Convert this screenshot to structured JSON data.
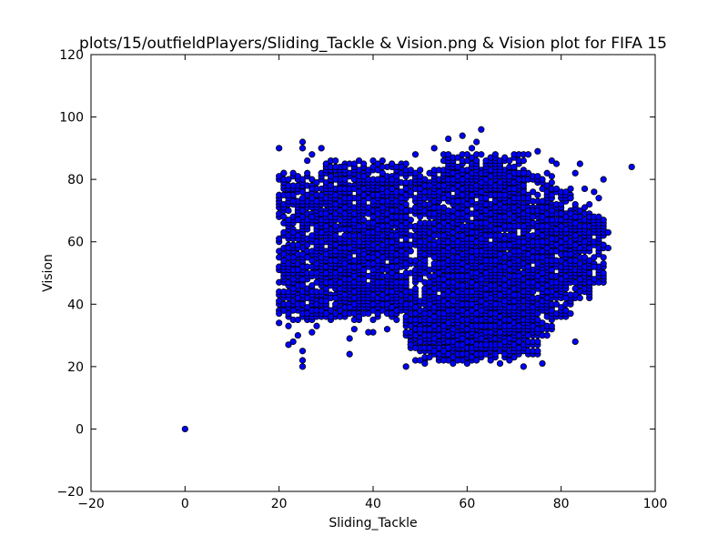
{
  "chart_data": {
    "type": "scatter",
    "title": "plots/15/outfieldPlayers/Sliding_Tackle & Vision.png & Vision plot for FIFA 15",
    "xlabel": "Sliding_Tackle",
    "ylabel": "Vision",
    "xlim": [
      -20,
      100
    ],
    "ylim": [
      -20,
      120
    ],
    "xticks": [
      -20,
      0,
      20,
      40,
      60,
      80,
      100
    ],
    "yticks": [
      -20,
      0,
      20,
      40,
      60,
      80,
      100,
      120
    ],
    "grid": false,
    "legend": "none",
    "marker_color": "#0000ff",
    "marker_edge_color": "#000000",
    "series": [
      {
        "points": [
          [
            0,
            0
          ],
          [
            95,
            84
          ],
          [
            90,
            63
          ],
          [
            90,
            58
          ],
          [
            89,
            80
          ],
          [
            88,
            68
          ],
          [
            88,
            74
          ],
          [
            87,
            76
          ],
          [
            86,
            47
          ],
          [
            87,
            52
          ],
          [
            85,
            77
          ],
          [
            84,
            85
          ],
          [
            83,
            82
          ],
          [
            83,
            28
          ],
          [
            82,
            74
          ],
          [
            82,
            69
          ],
          [
            81,
            64
          ],
          [
            80,
            60
          ],
          [
            79,
            85
          ],
          [
            78,
            86
          ],
          [
            77,
            58
          ],
          [
            76,
            21
          ],
          [
            75,
            89
          ],
          [
            73,
            88
          ],
          [
            72,
            20
          ],
          [
            71,
            26
          ],
          [
            70,
            23
          ],
          [
            69,
            22
          ],
          [
            68,
            24
          ],
          [
            67,
            21
          ],
          [
            66,
            88
          ],
          [
            65,
            22
          ],
          [
            64,
            27
          ],
          [
            63,
            96
          ],
          [
            62,
            92
          ],
          [
            61,
            90
          ],
          [
            60,
            21
          ],
          [
            59,
            94
          ],
          [
            58,
            22
          ],
          [
            57,
            21
          ],
          [
            56,
            93
          ],
          [
            55,
            22
          ],
          [
            54,
            26
          ],
          [
            53,
            90
          ],
          [
            52,
            23
          ],
          [
            51,
            21
          ],
          [
            50,
            22
          ],
          [
            49,
            88
          ],
          [
            48,
            27
          ],
          [
            47,
            20
          ],
          [
            46,
            84
          ],
          [
            45,
            35
          ],
          [
            44,
            85
          ],
          [
            43,
            32
          ],
          [
            42,
            84
          ],
          [
            41,
            37
          ],
          [
            40,
            31
          ],
          [
            39,
            31
          ],
          [
            38,
            85
          ],
          [
            37,
            36
          ],
          [
            36,
            85
          ],
          [
            35,
            24
          ],
          [
            35,
            29
          ],
          [
            34,
            84
          ],
          [
            33,
            38
          ],
          [
            32,
            84
          ],
          [
            31,
            36
          ],
          [
            30,
            85
          ],
          [
            29,
            90
          ],
          [
            28,
            33
          ],
          [
            27,
            88
          ],
          [
            26,
            86
          ],
          [
            25,
            92
          ],
          [
            25,
            90
          ],
          [
            25,
            20
          ],
          [
            25,
            22
          ],
          [
            25,
            25
          ],
          [
            24,
            30
          ],
          [
            23,
            28
          ],
          [
            22,
            27
          ],
          [
            21,
            82
          ],
          [
            20,
            90
          ],
          [
            20,
            37
          ],
          [
            20,
            34
          ],
          [
            21,
            38
          ],
          [
            22,
            33
          ],
          [
            24,
            35
          ],
          [
            26,
            37
          ],
          [
            27,
            31
          ],
          [
            36,
            32
          ]
        ]
      }
    ],
    "regions": [
      {
        "x": [
          20,
          47
        ],
        "y": [
          38,
          82
        ]
      },
      {
        "x": [
          22,
          45
        ],
        "y": [
          35,
          78
        ]
      },
      {
        "x": [
          47,
          56
        ],
        "y": [
          27,
          83
        ]
      },
      {
        "x": [
          50,
          66
        ],
        "y": [
          25,
          79
        ]
      },
      {
        "x": [
          55,
          70
        ],
        "y": [
          23,
          83
        ]
      },
      {
        "x": [
          58,
          72
        ],
        "y": [
          28,
          83
        ]
      },
      {
        "x": [
          66,
          78
        ],
        "y": [
          30,
          82
        ]
      },
      {
        "x": [
          72,
          82
        ],
        "y": [
          36,
          77
        ]
      },
      {
        "x": [
          76,
          86
        ],
        "y": [
          42,
          72
        ]
      },
      {
        "x": [
          80,
          89
        ],
        "y": [
          47,
          68
        ]
      },
      {
        "x": [
          48,
          62
        ],
        "y": [
          22,
          40
        ]
      },
      {
        "x": [
          62,
          75
        ],
        "y": [
          24,
          40
        ]
      },
      {
        "x": [
          30,
          47
        ],
        "y": [
          40,
          86
        ]
      },
      {
        "x": [
          55,
          72
        ],
        "y": [
          75,
          88
        ]
      }
    ],
    "region_density": 0.55
  }
}
